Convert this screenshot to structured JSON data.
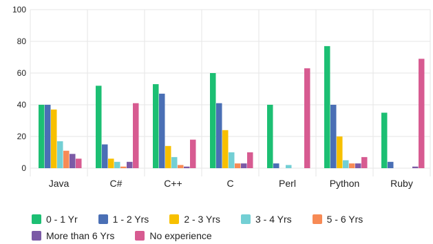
{
  "chart_data": {
    "type": "bar",
    "title": "",
    "xlabel": "",
    "ylabel": "",
    "ylim": [
      0,
      100
    ],
    "yticks": [
      0,
      20,
      40,
      60,
      80,
      100
    ],
    "grid": true,
    "legend_position": "bottom",
    "categories": [
      "Java",
      "C#",
      "C++",
      "C",
      "Perl",
      "Python",
      "Ruby"
    ],
    "series": [
      {
        "name": "0 - 1 Yr",
        "color": "#1cbf73",
        "values": [
          40,
          52,
          53,
          60,
          40,
          77,
          35
        ]
      },
      {
        "name": "1 - 2 Yrs",
        "color": "#4a6fb5",
        "values": [
          40,
          15,
          47,
          41,
          3,
          40,
          4
        ]
      },
      {
        "name": "2 - 3 Yrs",
        "color": "#f7c000",
        "values": [
          37,
          6,
          14,
          24,
          0,
          20,
          0
        ]
      },
      {
        "name": "3 - 4 Yrs",
        "color": "#73cfd4",
        "values": [
          17,
          4,
          7,
          10,
          2,
          5,
          0
        ]
      },
      {
        "name": "5 - 6 Yrs",
        "color": "#f78a55",
        "values": [
          11,
          1,
          2,
          3,
          0,
          3,
          0
        ]
      },
      {
        "name": "More than 6 Yrs",
        "color": "#7b5aa6",
        "values": [
          9,
          4,
          1,
          3,
          0,
          3,
          1
        ]
      },
      {
        "name": "No experience",
        "color": "#d75b91",
        "values": [
          6,
          41,
          18,
          10,
          63,
          7,
          69
        ]
      }
    ]
  }
}
